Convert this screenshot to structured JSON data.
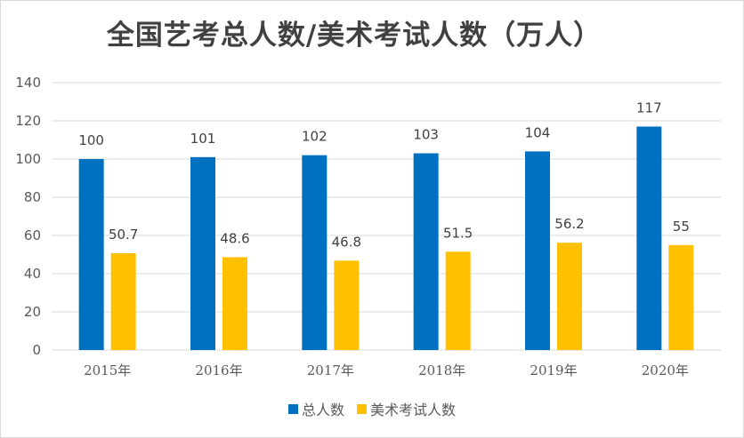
{
  "chart_data": {
    "type": "bar",
    "title": "全国艺考总人数/美术考试人数（万人）",
    "categories": [
      "2015年",
      "2016年",
      "2017年",
      "2018年",
      "2019年",
      "2020年"
    ],
    "series": [
      {
        "name": "总人数",
        "color": "#0070C0",
        "values": [
          100,
          101,
          102,
          103,
          104,
          117
        ],
        "labels": [
          "100",
          "101",
          "102",
          "103",
          "104",
          "117"
        ]
      },
      {
        "name": "美术考试人数",
        "color": "#FFC000",
        "values": [
          50.7,
          48.6,
          46.8,
          51.5,
          56.2,
          55
        ],
        "labels": [
          "50.7",
          "48.6",
          "46.8",
          "51.5",
          "56.2",
          "55"
        ]
      }
    ],
    "ylim": [
      0,
      140
    ],
    "yticks": [
      "0",
      "20",
      "40",
      "60",
      "80",
      "100",
      "120",
      "140"
    ],
    "grid": true,
    "legend_position": "bottom",
    "xlabel": "",
    "ylabel": ""
  }
}
